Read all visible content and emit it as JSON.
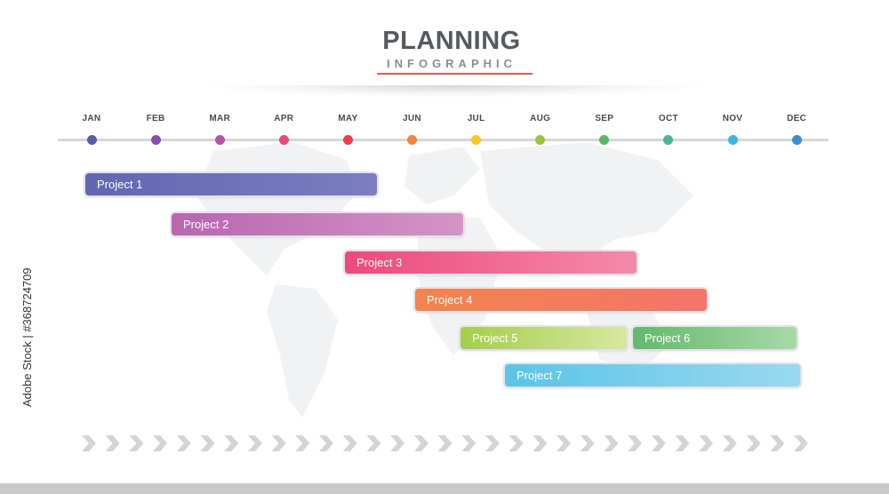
{
  "header": {
    "title": "PLANNING",
    "subtitle": "INFOGRAPHIC"
  },
  "months": [
    {
      "label": "JAN",
      "color": "#5b5bad"
    },
    {
      "label": "FEB",
      "color": "#8a4fa8"
    },
    {
      "label": "MAR",
      "color": "#b554a6"
    },
    {
      "label": "APR",
      "color": "#e44a7a"
    },
    {
      "label": "MAY",
      "color": "#ea3f4b"
    },
    {
      "label": "JUN",
      "color": "#f2853c"
    },
    {
      "label": "JUL",
      "color": "#f4c72c"
    },
    {
      "label": "AUG",
      "color": "#9bc53d"
    },
    {
      "label": "SEP",
      "color": "#59b865"
    },
    {
      "label": "OCT",
      "color": "#4bb59a"
    },
    {
      "label": "NOV",
      "color": "#3bb6e2"
    },
    {
      "label": "DEC",
      "color": "#3a8fd0"
    }
  ],
  "projects": [
    {
      "label": "Project 1",
      "start": 0,
      "end": 4.55,
      "color_from": "#6066b0",
      "color_to": "#7c7ec0"
    },
    {
      "label": "Project 2",
      "start": 1.35,
      "end": 5.9,
      "color_from": "#b866b0",
      "color_to": "#d494c6"
    },
    {
      "label": "Project 3",
      "start": 4.05,
      "end": 8.6,
      "color_from": "#ec4a7c",
      "color_to": "#f58aab"
    },
    {
      "label": "Project 4",
      "start": 5.15,
      "end": 9.7,
      "color_from": "#f2844c",
      "color_to": "#f4756a"
    },
    {
      "label": "Project 5",
      "start": 5.85,
      "end": 8.45,
      "color_from": "#a4cd4b",
      "color_to": "#d7e8a0"
    },
    {
      "label": "Project 6",
      "start": 8.55,
      "end": 11.1,
      "color_from": "#62b96c",
      "color_to": "#a8d9a8"
    },
    {
      "label": "Project 7",
      "start": 6.55,
      "end": 11.15,
      "color_from": "#5bc4e8",
      "color_to": "#9ad9ef"
    }
  ],
  "credit_text": "Adobe Stock | #368724709"
}
